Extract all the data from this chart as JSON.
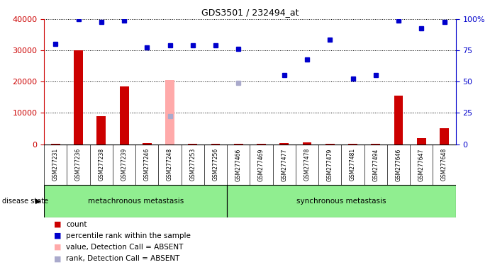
{
  "title": "GDS3501 / 232494_at",
  "samples": [
    "GSM277231",
    "GSM277236",
    "GSM277238",
    "GSM277239",
    "GSM277246",
    "GSM277248",
    "GSM277253",
    "GSM277256",
    "GSM277466",
    "GSM277469",
    "GSM277477",
    "GSM277478",
    "GSM277479",
    "GSM277481",
    "GSM277494",
    "GSM277646",
    "GSM277647",
    "GSM277648"
  ],
  "count_values": [
    200,
    30000,
    9000,
    18500,
    300,
    400,
    200,
    100,
    100,
    100,
    400,
    500,
    200,
    200,
    100,
    15500,
    2000,
    5000
  ],
  "percentile_values": [
    32000,
    40000,
    39000,
    39500,
    31000,
    31500,
    31500,
    31500,
    30500,
    22000,
    27000,
    33500,
    21000,
    22000,
    39500,
    37000,
    39000
  ],
  "percentile_indices": [
    0,
    1,
    2,
    3,
    4,
    5,
    6,
    7,
    8,
    10,
    11,
    12,
    13,
    14,
    15,
    16,
    17
  ],
  "absent_value_indices": [
    5
  ],
  "absent_value_values": [
    20500
  ],
  "absent_rank_indices": [
    5,
    8
  ],
  "absent_rank_values": [
    9000,
    19500
  ],
  "group1_label": "metachronous metastasis",
  "group2_label": "synchronous metastasis",
  "group1_count": 8,
  "group2_count": 10,
  "ylim_left": [
    0,
    40000
  ],
  "ylim_right": [
    0,
    100
  ],
  "yticks_left": [
    0,
    10000,
    20000,
    30000,
    40000
  ],
  "yticks_right": [
    0,
    25,
    50,
    75,
    100
  ],
  "ytick_labels_left": [
    "0",
    "10000",
    "20000",
    "30000",
    "40000"
  ],
  "ytick_labels_right": [
    "0",
    "25",
    "50",
    "75",
    "100%"
  ],
  "bar_color": "#cc0000",
  "dot_color_dark": "#0000cc",
  "absent_bar_color": "#ffaaaa",
  "absent_rank_color": "#aaaacc",
  "group_bg_color": "#90ee90",
  "tick_area_bg": "#cccccc",
  "bg_color": "#ffffff"
}
